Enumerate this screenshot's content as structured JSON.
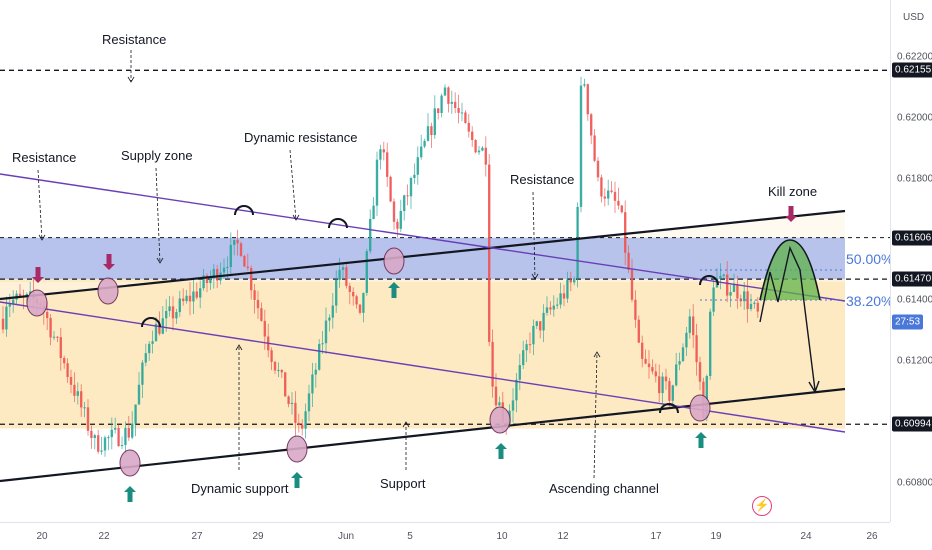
{
  "chart_data": {
    "type": "candlestick",
    "currency": "USD",
    "y_range": [
      0.6068,
      0.6232
    ],
    "price_ticks": [
      "0.62200",
      "0.62000",
      "0.61800",
      "0.61400",
      "0.61200",
      "0.60800"
    ],
    "price_badges": [
      {
        "value": "0.62155",
        "y": 0.62155
      },
      {
        "value": "0.61606",
        "y": 0.61606
      },
      {
        "value": "0.61470",
        "y": 0.6147
      },
      {
        "value": "0.60994",
        "y": 0.60994
      }
    ],
    "countdown": "27:53",
    "current_price": 0.6133,
    "x_ticks": [
      "20",
      "22",
      "27",
      "29",
      "Jun",
      "5",
      "10",
      "12",
      "17",
      "19",
      "24",
      "26"
    ],
    "horizontal_levels": [
      0.62155,
      0.6147,
      0.60994
    ],
    "supply_zone": [
      0.6147,
      0.61606
    ],
    "fib_levels": [
      {
        "label": "50.00%",
        "y": 0.6158
      },
      {
        "label": "38.20%",
        "y": 0.614
      }
    ],
    "annotations": {
      "resistance_top": "Resistance",
      "resistance_left": "Resistance",
      "supply_zone": "Supply zone",
      "dynamic_resistance": "Dynamic resistance",
      "resistance_mid": "Resistance",
      "kill_zone": "Kill zone",
      "dynamic_support": "Dynamic support",
      "support": "Support",
      "ascending_channel": "Ascending channel"
    },
    "colors": {
      "up": "#26a69a",
      "down": "#ef5350",
      "channel_fill": "#fde9c2",
      "zone_fill": "#aab8ea",
      "trend": "#6a3fb5",
      "accent": "#a72a66",
      "support_arrow": "#1a8c80",
      "kill_zone": "#5fb34a"
    }
  }
}
